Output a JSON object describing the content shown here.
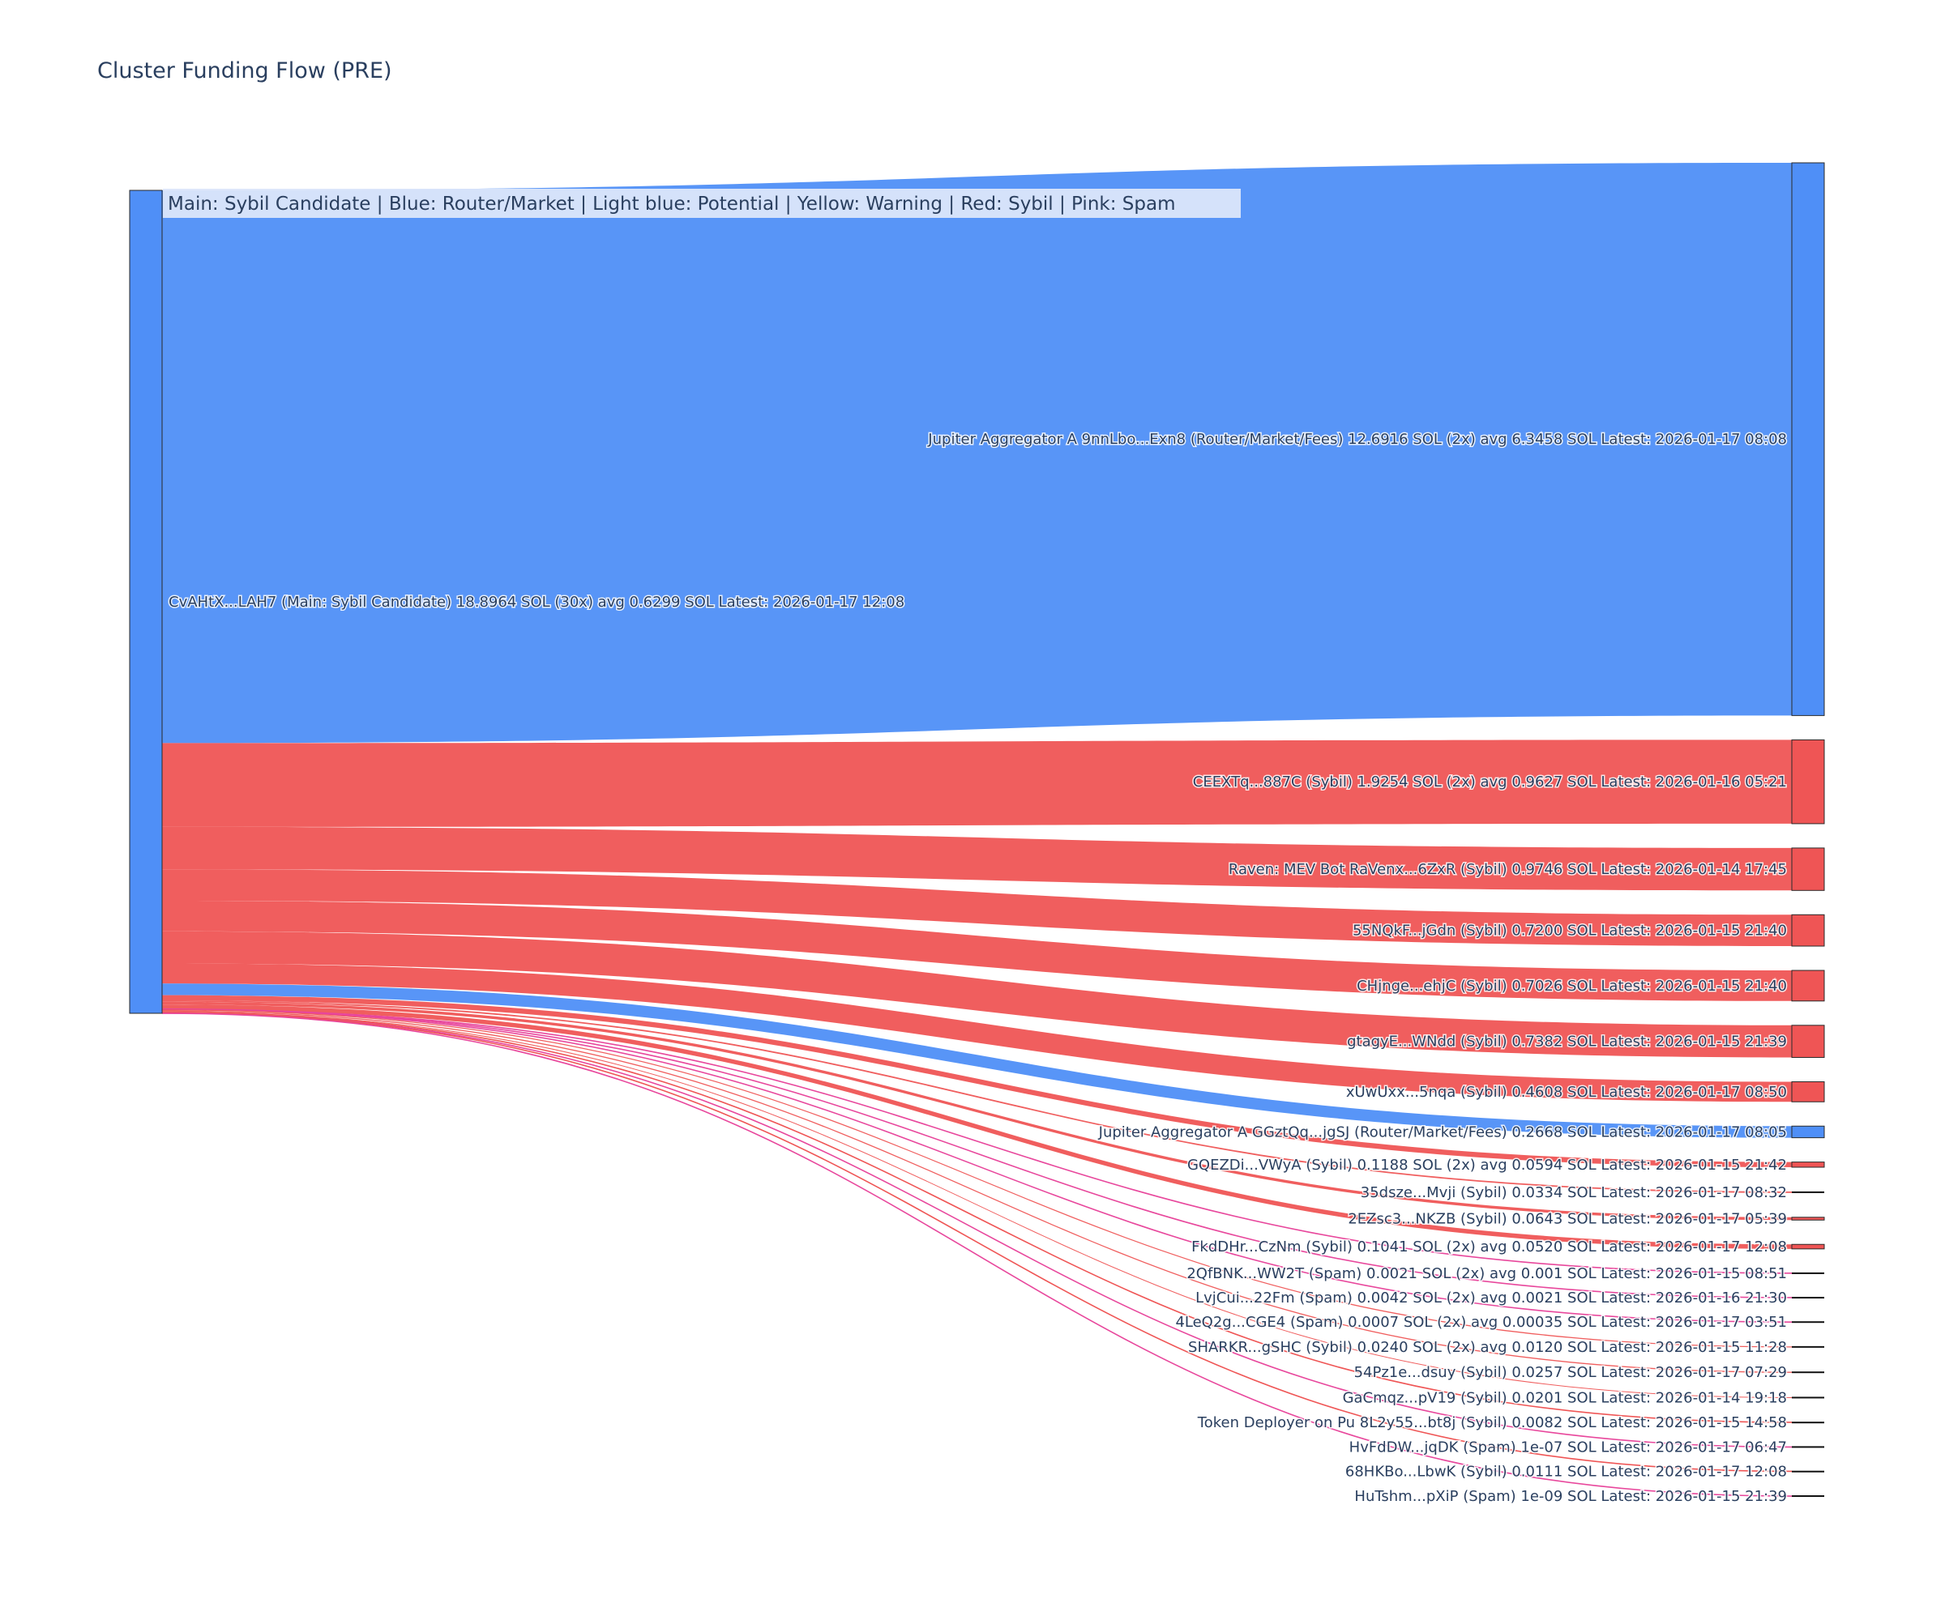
{
  "chart_data": {
    "type": "sankey",
    "title": "Cluster Funding Flow (PRE)",
    "legend_annotation": "Main: Sybil Candidate  |  Blue: Router/Market | Light blue: Potential | Yellow: Warning | Red: Sybil | Pink: Spam",
    "colors": {
      "Main": "#4f8ff7",
      "Router": "#4f8ff7",
      "Sybil": "#ef5555",
      "Spam": "#e8479c",
      "node_border": "#2a2a2a"
    },
    "source": {
      "label": "CvAHtX...LAH7 (Main: Sybil Candidate) 18.8964 SOL (30x) avg 0.6299 SOL Latest: 2026-01-17 12:08",
      "value": 18.8964,
      "category": "Main"
    },
    "targets": [
      {
        "label": "Jupiter Aggregator A 9nnLbo...Exn8 (Router/Market/Fees) 12.6916 SOL (2x) avg 6.3458 SOL Latest: 2026-01-17 08:08",
        "value": 12.6916,
        "category": "Router"
      },
      {
        "label": "CEEXTq...887C (Sybil) 1.9254 SOL (2x) avg 0.9627 SOL Latest: 2026-01-16 05:21",
        "value": 1.9254,
        "category": "Sybil"
      },
      {
        "label": "Raven: MEV Bot RaVenx...6ZxR (Sybil) 0.9746 SOL Latest: 2026-01-14 17:45",
        "value": 0.9746,
        "category": "Sybil"
      },
      {
        "label": "55NQkF...jGdn (Sybil) 0.7200 SOL Latest: 2026-01-15 21:40",
        "value": 0.72,
        "category": "Sybil"
      },
      {
        "label": "CHjnge...ehjC (Sybil) 0.7026 SOL Latest: 2026-01-15 21:40",
        "value": 0.7026,
        "category": "Sybil"
      },
      {
        "label": "gtagyE...WNdd (Sybil) 0.7382 SOL Latest: 2026-01-15 21:39",
        "value": 0.7382,
        "category": "Sybil"
      },
      {
        "label": "xUwUxx...5nqa (Sybil) 0.4608 SOL Latest: 2026-01-17 08:50",
        "value": 0.4608,
        "category": "Sybil"
      },
      {
        "label": "Jupiter Aggregator A GGztQq...jgSJ (Router/Market/Fees) 0.2668 SOL Latest: 2026-01-17 08:05",
        "value": 0.2668,
        "category": "Router"
      },
      {
        "label": "GQEZDi...VWyA (Sybil) 0.1188 SOL (2x) avg 0.0594 SOL Latest: 2026-01-15 21:42",
        "value": 0.1188,
        "category": "Sybil"
      },
      {
        "label": "35dsze...Mvji (Sybil) 0.0334 SOL Latest: 2026-01-17 08:32",
        "value": 0.0334,
        "category": "Sybil"
      },
      {
        "label": "2EZsc3...NKZB (Sybil) 0.0643 SOL Latest: 2026-01-17 05:39",
        "value": 0.0643,
        "category": "Sybil"
      },
      {
        "label": "FkdDHr...CzNm (Sybil) 0.1041 SOL (2x) avg 0.0520 SOL Latest: 2026-01-17 12:08",
        "value": 0.1041,
        "category": "Sybil"
      },
      {
        "label": "2QfBNK...WW2T (Spam) 0.0021 SOL (2x) avg 0.001 SOL Latest: 2026-01-15 08:51",
        "value": 0.0021,
        "category": "Spam"
      },
      {
        "label": "LvjCui...22Fm (Spam) 0.0042 SOL (2x) avg 0.0021 SOL Latest: 2026-01-16 21:30",
        "value": 0.0042,
        "category": "Spam"
      },
      {
        "label": "4LeQ2g...CGE4 (Spam) 0.0007 SOL (2x) avg 0.00035 SOL Latest: 2026-01-17 03:51",
        "value": 0.0007,
        "category": "Spam"
      },
      {
        "label": "SHARKR...gSHC (Sybil) 0.0240 SOL (2x) avg 0.0120 SOL Latest: 2026-01-15 11:28",
        "value": 0.024,
        "category": "Sybil"
      },
      {
        "label": "54Pz1e...dsuy (Sybil) 0.0257 SOL Latest: 2026-01-17 07:29",
        "value": 0.0257,
        "category": "Sybil"
      },
      {
        "label": "GaCmqz...pV19 (Sybil) 0.0201 SOL Latest: 2026-01-14 19:18",
        "value": 0.0201,
        "category": "Sybil"
      },
      {
        "label": "Token Deployer on Pu 8L2y55...bt8j (Sybil) 0.0082 SOL Latest: 2026-01-15 14:58",
        "value": 0.0082,
        "category": "Sybil"
      },
      {
        "label": "HvFdDW...jqDK (Spam) 1e-07 SOL Latest: 2026-01-17 06:47",
        "value": 1e-07,
        "category": "Spam"
      },
      {
        "label": "68HKBo...LbwK (Sybil) 0.0111 SOL Latest: 2026-01-17 12:08",
        "value": 0.0111,
        "category": "Sybil"
      },
      {
        "label": "HuTshm...pXiP (Spam) 1e-09 SOL Latest: 2026-01-15 21:39",
        "value": 1e-09,
        "category": "Spam"
      }
    ]
  }
}
